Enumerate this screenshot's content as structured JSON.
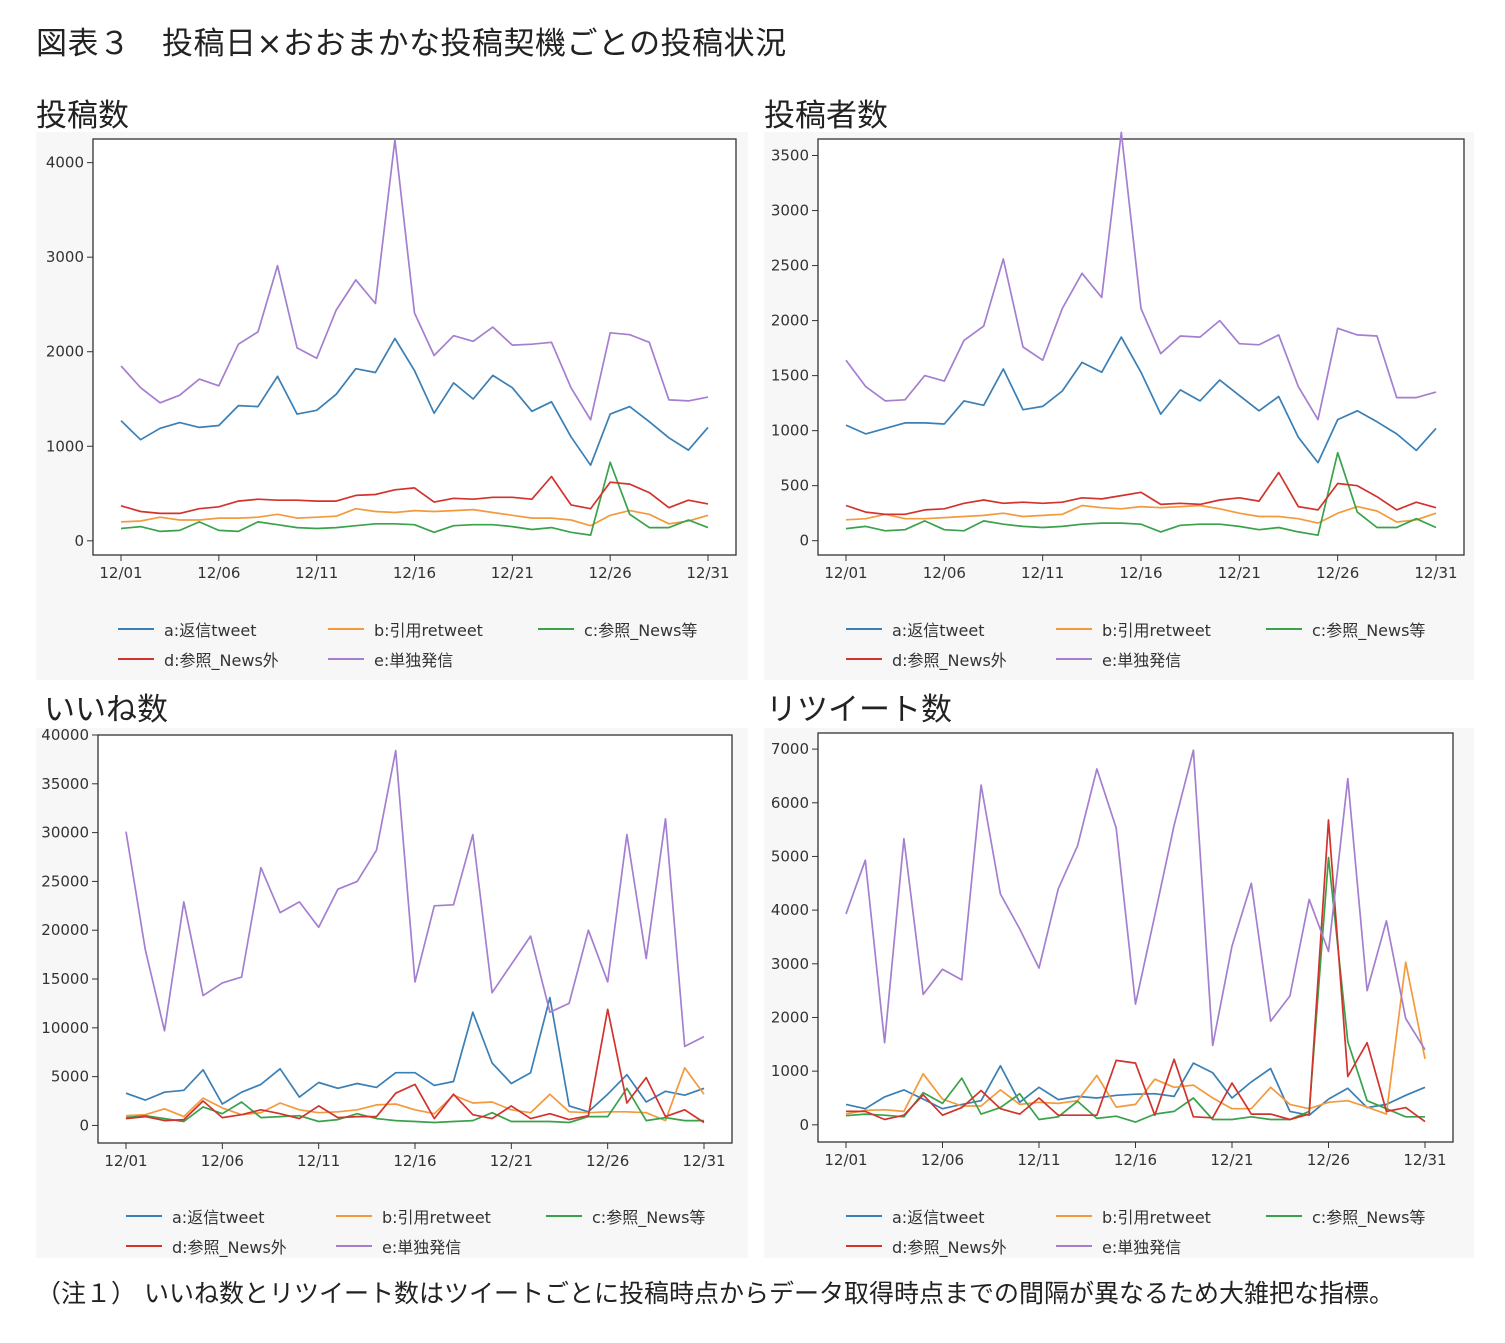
{
  "figure_title": "図表３　投稿日×おおまかな投稿契機ごとの投稿状況",
  "footnote": "（注１） いいね数とリツイート数はツイートごとに投稿時点からデータ取得時点までの間隔が異なるため大雑把な指標。",
  "colors": {
    "a": "#3a7fb5",
    "b": "#f39a3c",
    "c": "#3aa24a",
    "d": "#d2332d",
    "e": "#a47fd0"
  },
  "x_tick_labels": [
    "12/01",
    "12/06",
    "12/11",
    "12/16",
    "12/21",
    "12/26",
    "12/31"
  ],
  "legend": [
    {
      "key": "a",
      "label": "a:返信tweet"
    },
    {
      "key": "b",
      "label": "b:引用retweet"
    },
    {
      "key": "c",
      "label": "c:参照_News等"
    },
    {
      "key": "d",
      "label": "d:参照_News外"
    },
    {
      "key": "e",
      "label": "e:単独発信"
    }
  ],
  "chart_data": [
    {
      "id": "posts",
      "type": "line",
      "title": "投稿数",
      "x": "12/01-12/31 (daily)",
      "ylim": [
        -150,
        4250
      ],
      "yticks": [
        0,
        1000,
        2000,
        3000,
        4000
      ],
      "series": [
        {
          "name": "a:返信tweet",
          "key": "a",
          "values": [
            1270,
            1070,
            1190,
            1250,
            1200,
            1220,
            1430,
            1420,
            1740,
            1340,
            1380,
            1550,
            1820,
            1780,
            2140,
            1800,
            1350,
            1670,
            1500,
            1750,
            1620,
            1370,
            1470,
            1100,
            800,
            1340,
            1420,
            1260,
            1090,
            960,
            1200
          ]
        },
        {
          "name": "b:引用retweet",
          "key": "b",
          "values": [
            200,
            210,
            250,
            220,
            220,
            240,
            240,
            250,
            280,
            240,
            250,
            260,
            340,
            310,
            300,
            320,
            310,
            320,
            330,
            300,
            270,
            240,
            240,
            220,
            160,
            270,
            320,
            280,
            180,
            210,
            270
          ]
        },
        {
          "name": "c:参照_News等",
          "key": "c",
          "values": [
            130,
            150,
            100,
            110,
            200,
            110,
            100,
            200,
            170,
            140,
            130,
            140,
            160,
            180,
            180,
            170,
            90,
            160,
            170,
            170,
            150,
            120,
            140,
            90,
            60,
            830,
            280,
            140,
            140,
            220,
            140
          ]
        },
        {
          "name": "d:参照_News外",
          "key": "d",
          "values": [
            370,
            310,
            290,
            290,
            340,
            360,
            420,
            440,
            430,
            430,
            420,
            420,
            480,
            490,
            540,
            560,
            410,
            450,
            440,
            460,
            460,
            440,
            680,
            380,
            340,
            620,
            600,
            510,
            350,
            430,
            390
          ]
        },
        {
          "name": "e:単独発信",
          "key": "e",
          "values": [
            1850,
            1620,
            1460,
            1540,
            1710,
            1640,
            2080,
            2210,
            2910,
            2040,
            1930,
            2440,
            2760,
            2510,
            4240,
            2410,
            1960,
            2170,
            2110,
            2260,
            2070,
            2080,
            2100,
            1620,
            1280,
            2200,
            2180,
            2100,
            1490,
            1480,
            1520
          ]
        }
      ]
    },
    {
      "id": "posters",
      "type": "line",
      "title": "投稿者数",
      "x": "12/01-12/31 (daily)",
      "ylim": [
        -130,
        3650
      ],
      "yticks": [
        0,
        500,
        1000,
        1500,
        2000,
        2500,
        3000,
        3500
      ],
      "series": [
        {
          "name": "a:返信tweet",
          "key": "a",
          "values": [
            1050,
            970,
            1020,
            1070,
            1070,
            1060,
            1270,
            1230,
            1560,
            1190,
            1220,
            1360,
            1620,
            1530,
            1850,
            1530,
            1150,
            1370,
            1270,
            1460,
            1320,
            1180,
            1310,
            940,
            710,
            1100,
            1180,
            1080,
            970,
            820,
            1020
          ]
        },
        {
          "name": "b:引用retweet",
          "key": "b",
          "values": [
            190,
            200,
            240,
            200,
            200,
            210,
            220,
            230,
            250,
            220,
            230,
            240,
            320,
            300,
            290,
            310,
            300,
            310,
            320,
            290,
            250,
            220,
            220,
            200,
            160,
            250,
            310,
            270,
            170,
            190,
            250
          ]
        },
        {
          "name": "c:参照_News等",
          "key": "c",
          "values": [
            110,
            130,
            90,
            100,
            180,
            100,
            90,
            180,
            150,
            130,
            120,
            130,
            150,
            160,
            160,
            150,
            80,
            140,
            150,
            150,
            130,
            100,
            120,
            80,
            50,
            800,
            260,
            120,
            120,
            200,
            120
          ]
        },
        {
          "name": "d:参照_News外",
          "key": "d",
          "values": [
            320,
            260,
            240,
            240,
            280,
            290,
            340,
            370,
            340,
            350,
            340,
            350,
            390,
            380,
            410,
            440,
            330,
            340,
            330,
            370,
            390,
            360,
            620,
            310,
            280,
            520,
            500,
            400,
            280,
            350,
            300
          ]
        },
        {
          "name": "e:単独発信",
          "key": "e",
          "values": [
            1640,
            1400,
            1270,
            1280,
            1500,
            1450,
            1820,
            1950,
            2560,
            1760,
            1640,
            2110,
            2430,
            2210,
            3710,
            2110,
            1700,
            1860,
            1850,
            2000,
            1790,
            1780,
            1870,
            1400,
            1100,
            1930,
            1870,
            1860,
            1300,
            1300,
            1350
          ]
        }
      ]
    },
    {
      "id": "likes",
      "type": "line",
      "title": "いいね数",
      "x": "12/01-12/31 (daily)",
      "ylim": [
        -1800,
        40000
      ],
      "yticks": [
        0,
        5000,
        10000,
        15000,
        20000,
        25000,
        30000,
        35000,
        40000
      ],
      "series": [
        {
          "name": "a:返信tweet",
          "key": "a",
          "values": [
            3300,
            2600,
            3400,
            3600,
            5700,
            2200,
            3400,
            4200,
            5800,
            2900,
            4400,
            3800,
            4300,
            3900,
            5400,
            5400,
            4100,
            4500,
            11600,
            6400,
            4300,
            5400,
            13100,
            2000,
            1400,
            3200,
            5200,
            2400,
            3500,
            3100,
            3800
          ]
        },
        {
          "name": "b:引用retweet",
          "key": "b",
          "values": [
            1000,
            1100,
            1700,
            900,
            2800,
            1800,
            1100,
            1300,
            2300,
            1600,
            1300,
            1400,
            1600,
            2100,
            2200,
            1600,
            1200,
            3100,
            2300,
            2400,
            1600,
            1300,
            3200,
            1400,
            1300,
            1400,
            1400,
            1300,
            500,
            5900,
            3200
          ]
        },
        {
          "name": "c:参照_News等",
          "key": "c",
          "values": [
            800,
            1000,
            700,
            400,
            1900,
            1200,
            2400,
            800,
            900,
            1000,
            400,
            600,
            1200,
            700,
            500,
            400,
            300,
            400,
            500,
            1300,
            400,
            400,
            400,
            300,
            900,
            900,
            3800,
            500,
            800,
            500,
            500
          ]
        },
        {
          "name": "d:参照_News外",
          "key": "d",
          "values": [
            700,
            900,
            500,
            600,
            2500,
            800,
            1100,
            1600,
            1200,
            700,
            2000,
            800,
            900,
            900,
            3300,
            4200,
            700,
            3200,
            1100,
            700,
            2000,
            700,
            1200,
            600,
            1000,
            11900,
            2300,
            4900,
            900,
            1600,
            300
          ]
        },
        {
          "name": "e:単独発信",
          "key": "e",
          "values": [
            30100,
            18000,
            9700,
            22900,
            13300,
            14600,
            15200,
            26400,
            21800,
            22900,
            20300,
            24200,
            25000,
            28200,
            38400,
            14700,
            22500,
            22600,
            29800,
            13600,
            16500,
            19400,
            11600,
            12500,
            20000,
            14700,
            29800,
            17100,
            31400,
            8100,
            9100
          ]
        }
      ]
    },
    {
      "id": "retweets",
      "type": "line",
      "title": "リツイート数",
      "x": "12/01-12/31 (daily)",
      "ylim": [
        -320,
        7300
      ],
      "yticks": [
        0,
        1000,
        2000,
        3000,
        4000,
        5000,
        6000,
        7000
      ],
      "series": [
        {
          "name": "a:返信tweet",
          "key": "a",
          "values": [
            380,
            300,
            520,
            650,
            480,
            300,
            380,
            450,
            1100,
            420,
            700,
            470,
            530,
            500,
            550,
            570,
            580,
            530,
            1150,
            970,
            500,
            800,
            1050,
            250,
            180,
            480,
            680,
            320,
            380,
            550,
            700
          ]
        },
        {
          "name": "b:引用retweet",
          "key": "b",
          "values": [
            200,
            270,
            280,
            250,
            950,
            480,
            350,
            350,
            650,
            380,
            420,
            400,
            450,
            920,
            330,
            380,
            850,
            700,
            740,
            500,
            300,
            300,
            700,
            380,
            300,
            420,
            450,
            330,
            200,
            3030,
            1230
          ]
        },
        {
          "name": "c:参照_News等",
          "key": "c",
          "values": [
            170,
            200,
            180,
            150,
            600,
            400,
            870,
            200,
            320,
            580,
            100,
            150,
            440,
            120,
            160,
            50,
            200,
            250,
            500,
            100,
            100,
            150,
            100,
            100,
            250,
            4980,
            1550,
            450,
            300,
            150,
            150
          ]
        },
        {
          "name": "d:参照_News外",
          "key": "d",
          "values": [
            250,
            250,
            100,
            180,
            560,
            180,
            320,
            640,
            300,
            200,
            500,
            180,
            180,
            180,
            1200,
            1150,
            180,
            1220,
            150,
            130,
            780,
            200,
            200,
            100,
            200,
            5680,
            900,
            1530,
            250,
            320,
            60
          ]
        },
        {
          "name": "e:単独発信",
          "key": "e",
          "values": [
            3930,
            4930,
            1530,
            5330,
            2430,
            2900,
            2700,
            6330,
            4300,
            3650,
            2920,
            4400,
            5200,
            6630,
            5530,
            2250,
            3900,
            5580,
            6980,
            1480,
            3330,
            4500,
            1930,
            2400,
            4200,
            3230,
            6450,
            2500,
            3800,
            1980,
            1400
          ]
        }
      ]
    }
  ]
}
